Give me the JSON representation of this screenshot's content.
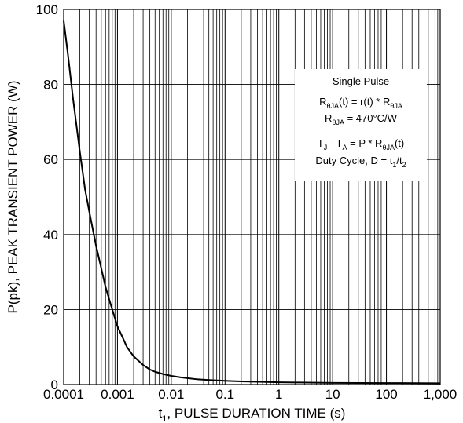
{
  "chart_data": {
    "type": "line",
    "xscale": "log",
    "xlim": [
      0.0001,
      1000
    ],
    "ylim": [
      0,
      100
    ],
    "grid": true,
    "xlabel_parts": [
      "t",
      "1",
      ", PULSE DURATION TIME (s)"
    ],
    "ylabel": "P(pk), PEAK TRANSIENT  POWER (W)",
    "xticks": [
      0.0001,
      0.001,
      0.01,
      0.1,
      1,
      10,
      100,
      1000
    ],
    "xtick_labels": [
      "0.0001",
      "0.001",
      "0.01",
      "0.1",
      "1",
      "10",
      "100",
      "1,000"
    ],
    "yticks": [
      0,
      20,
      40,
      60,
      80,
      100
    ],
    "ytick_labels": [
      "0",
      "20",
      "40",
      "60",
      "80",
      "100"
    ],
    "series": [
      {
        "x": [
          0.0001,
          0.00012,
          0.00015,
          0.0002,
          0.00025,
          0.0003,
          0.0004,
          0.0005,
          0.0006,
          0.0008,
          0.001,
          0.0013,
          0.0015,
          0.002,
          0.003,
          0.004,
          0.005,
          0.007,
          0.01,
          0.015,
          0.02,
          0.03,
          0.05,
          0.1,
          0.2,
          0.5,
          1,
          2,
          5,
          10,
          100,
          1000
        ],
        "y": [
          97,
          88,
          76,
          62,
          52,
          46,
          37,
          31,
          26,
          20,
          15.5,
          12,
          10,
          7.5,
          5.2,
          4,
          3.4,
          2.8,
          2.3,
          1.9,
          1.7,
          1.4,
          1.2,
          1.0,
          0.85,
          0.7,
          0.6,
          0.55,
          0.5,
          0.45,
          0.4,
          0.35
        ],
        "color": "#000000"
      }
    ],
    "annotation": {
      "line1": "Single Pulse",
      "line2": [
        {
          "t": "R"
        },
        {
          "t": "θJA",
          "sub": true
        },
        {
          "t": "(t) = r(t) * R"
        },
        {
          "t": "θJA",
          "sub": true
        }
      ],
      "line3": [
        {
          "t": "R"
        },
        {
          "t": "θJA",
          "sub": true
        },
        {
          "t": " = 470°C/W"
        }
      ],
      "line4": [
        {
          "t": "T"
        },
        {
          "t": "J",
          "sub": true
        },
        {
          "t": " - T"
        },
        {
          "t": "A",
          "sub": true
        },
        {
          "t": " = P * R"
        },
        {
          "t": "θJA",
          "sub": true
        },
        {
          "t": "(t)"
        }
      ],
      "line5": [
        {
          "t": "Duty Cycle, D = t"
        },
        {
          "t": "1",
          "sub": true
        },
        {
          "t": "/t"
        },
        {
          "t": "2",
          "sub": true
        }
      ]
    }
  }
}
